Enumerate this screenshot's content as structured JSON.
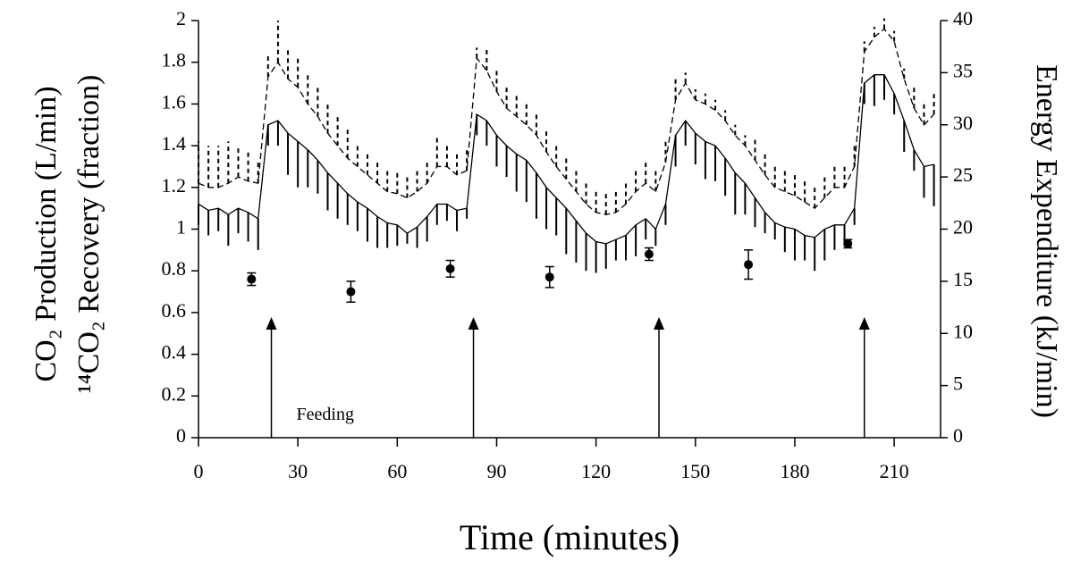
{
  "chart_data": {
    "type": "line",
    "xlabel": "Time (minutes)",
    "ylabel": [
      "CO₂ Production (L/min)",
      "¹⁴CO₂ Recovery (fraction)"
    ],
    "y2label": "Energy Expenditure (kJ/min)",
    "annotation": "Feeding",
    "feeding_times": [
      22,
      83,
      139,
      201
    ],
    "xlim": [
      0,
      224
    ],
    "xticks": [
      0,
      30,
      60,
      90,
      120,
      150,
      180,
      210
    ],
    "ylim": [
      0,
      2
    ],
    "yticks": [
      0,
      0.2,
      0.4,
      0.6,
      0.8,
      1,
      1.2,
      1.4,
      1.6,
      1.8,
      2
    ],
    "y2lim": [
      0,
      40
    ],
    "y2ticks": [
      0,
      5,
      10,
      15,
      20,
      25,
      30,
      35,
      40
    ],
    "x": [
      0,
      3,
      6,
      9,
      12,
      15,
      18,
      21,
      24,
      27,
      30,
      33,
      36,
      39,
      42,
      45,
      48,
      51,
      54,
      57,
      60,
      63,
      66,
      69,
      72,
      75,
      78,
      81,
      84,
      87,
      90,
      93,
      96,
      99,
      102,
      105,
      108,
      111,
      114,
      117,
      120,
      123,
      126,
      129,
      132,
      135,
      138,
      141,
      144,
      147,
      150,
      153,
      156,
      159,
      162,
      165,
      168,
      171,
      174,
      177,
      180,
      183,
      186,
      189,
      192,
      195,
      198,
      201,
      204,
      207,
      210,
      213,
      216,
      219,
      222
    ],
    "series": [
      {
        "style": "solid",
        "color": "#000000",
        "error_direction": "down",
        "values": [
          1.12,
          1.09,
          1.1,
          1.07,
          1.1,
          1.08,
          1.05,
          1.5,
          1.52,
          1.46,
          1.42,
          1.38,
          1.33,
          1.27,
          1.22,
          1.17,
          1.13,
          1.1,
          1.06,
          1.03,
          1.02,
          0.98,
          1.01,
          1.06,
          1.12,
          1.12,
          1.09,
          1.1,
          1.55,
          1.52,
          1.45,
          1.4,
          1.36,
          1.33,
          1.27,
          1.2,
          1.15,
          1.1,
          1.04,
          0.98,
          0.94,
          0.93,
          0.95,
          0.97,
          1.02,
          1.05,
          1.0,
          1.12,
          1.45,
          1.52,
          1.46,
          1.42,
          1.4,
          1.34,
          1.27,
          1.22,
          1.15,
          1.08,
          1.03,
          1.01,
          1.0,
          0.97,
          0.96,
          1.0,
          1.02,
          1.02,
          1.1,
          1.7,
          1.74,
          1.74,
          1.65,
          1.52,
          1.38,
          1.3,
          1.31
        ],
        "errors": [
          0.1,
          0.12,
          0.11,
          0.15,
          0.12,
          0.14,
          0.15,
          0.1,
          0.12,
          0.2,
          0.22,
          0.18,
          0.16,
          0.18,
          0.17,
          0.15,
          0.14,
          0.16,
          0.15,
          0.12,
          0.1,
          0.05,
          0.1,
          0.12,
          0.1,
          0.08,
          0.1,
          0.05,
          0.1,
          0.12,
          0.15,
          0.15,
          0.18,
          0.2,
          0.22,
          0.2,
          0.18,
          0.22,
          0.2,
          0.18,
          0.15,
          0.12,
          0.1,
          0.12,
          0.15,
          0.1,
          0.08,
          0.1,
          0.15,
          0.12,
          0.15,
          0.18,
          0.17,
          0.18,
          0.2,
          0.15,
          0.14,
          0.1,
          0.08,
          0.12,
          0.15,
          0.12,
          0.16,
          0.15,
          0.12,
          0.1,
          0.08,
          0.1,
          0.15,
          0.12,
          0.1,
          0.15,
          0.1,
          0.15,
          0.2
        ]
      },
      {
        "style": "dashed",
        "color": "#000000",
        "axis": "y2",
        "error_direction": "up",
        "values": [
          24.4,
          24,
          24,
          24.4,
          25,
          24.6,
          24.4,
          34.6,
          36,
          34.4,
          33.6,
          32,
          30.8,
          29.2,
          28,
          26.8,
          26,
          25.2,
          24.4,
          23.6,
          23.4,
          23,
          23.6,
          24.4,
          26,
          26,
          25.2,
          25.6,
          36.4,
          35.2,
          33.2,
          31.6,
          30.8,
          30,
          29,
          27.4,
          26,
          24.8,
          23.6,
          22.4,
          21.6,
          21.4,
          21.6,
          22.4,
          23.6,
          24.4,
          23.6,
          26.4,
          32.4,
          34,
          32.4,
          32,
          31.4,
          30.4,
          29,
          28,
          26.6,
          25.2,
          24,
          23.6,
          23.2,
          22.6,
          22,
          23,
          24,
          24,
          26,
          37,
          38.4,
          39.2,
          38,
          34.4,
          31.6,
          30,
          31
        ],
        "errors": [
          4,
          4,
          4,
          4,
          3,
          3,
          2,
          2,
          4,
          3,
          3,
          3,
          3,
          3,
          3,
          3,
          2,
          2,
          2,
          2,
          2,
          2,
          2,
          2,
          3,
          2,
          2,
          2,
          1,
          2,
          2,
          2,
          2,
          2,
          2,
          2,
          2,
          2,
          2,
          2,
          2,
          2,
          2,
          2,
          2,
          2,
          2,
          2,
          2,
          1,
          1,
          1,
          1,
          1,
          1,
          1,
          2,
          2,
          2,
          2,
          2,
          2,
          2,
          2,
          2,
          2,
          2,
          1,
          1,
          1,
          1,
          1,
          2,
          2,
          2
        ]
      }
    ],
    "points": {
      "x": [
        16,
        46,
        76,
        106,
        136,
        166,
        196
      ],
      "values": [
        0.76,
        0.7,
        0.81,
        0.77,
        0.88,
        0.83,
        0.93
      ],
      "errors": [
        0.03,
        0.05,
        0.04,
        0.05,
        0.03,
        0.07,
        0.02
      ],
      "color": "#000000"
    }
  }
}
